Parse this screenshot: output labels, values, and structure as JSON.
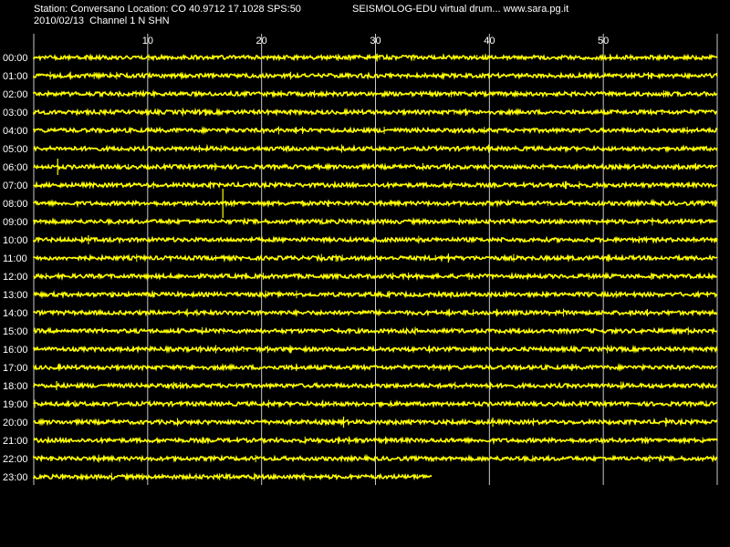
{
  "header": {
    "station_line": "Station: Conversano Location: CO 40.9712 17.1028 SPS:50",
    "date_line": "2010/02/13  Channel 1 N SHN",
    "site_line": "SEISMOLOG-EDU virtual drum... www.sara.pg.it"
  },
  "minute_ticks": [
    "10",
    "20",
    "30",
    "40",
    "50"
  ],
  "hour_labels": [
    "00:00",
    "01:00",
    "02:00",
    "03:00",
    "04:00",
    "05:00",
    "06:00",
    "07:00",
    "08:00",
    "09:00",
    "10:00",
    "11:00",
    "12:00",
    "13:00",
    "14:00",
    "15:00",
    "16:00",
    "17:00",
    "18:00",
    "19:00",
    "20:00",
    "21:00",
    "22:00",
    "23:00"
  ],
  "trace": {
    "last_hour_end_minute": 35,
    "events": [
      {
        "hour": 6,
        "minute": 2.1,
        "amplitude": 9
      },
      {
        "hour": 8,
        "minute": 16.6,
        "amplitude": 16
      },
      {
        "hour": 10,
        "minute": 4.8,
        "amplitude": 5
      },
      {
        "hour": 11,
        "minute": 36.4,
        "amplitude": 5
      },
      {
        "hour": 18,
        "minute": 2.0,
        "amplitude": 5
      },
      {
        "hour": 20,
        "minute": 27.2,
        "amplitude": 6
      },
      {
        "hour": 20,
        "minute": 40.3,
        "amplitude": 5
      },
      {
        "hour": 20,
        "minute": 55.5,
        "amplitude": 5
      }
    ]
  },
  "colors": {
    "background": "#000000",
    "trace": "#ffff00",
    "grid": "#c8c8c8",
    "text": "#ffffff"
  }
}
